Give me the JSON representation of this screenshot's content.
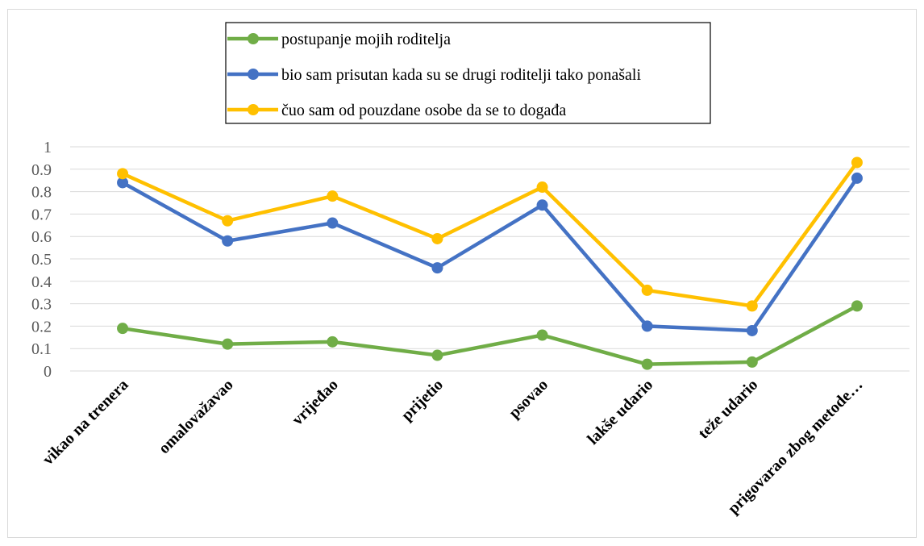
{
  "chart_data": {
    "type": "line",
    "title": "",
    "xlabel": "",
    "ylabel": "",
    "categories": [
      "vikao na trenera",
      "omalovažavao",
      "vrijeđao",
      "prijetio",
      "psovao",
      "lakše udario",
      "teže udario",
      "prigovarao zbog metode…"
    ],
    "ylim": [
      0,
      1
    ],
    "yticks": [
      "0",
      "0.1",
      "0.2",
      "0.3",
      "0.4",
      "0.5",
      "0.6",
      "0.7",
      "0.8",
      "0.9",
      "1"
    ],
    "grid": true,
    "legend_position": "top-center",
    "series": [
      {
        "name": "postupanje mojih roditelja",
        "color": "#70ad47",
        "values": [
          0.19,
          0.12,
          0.13,
          0.07,
          0.16,
          0.03,
          0.04,
          0.29
        ]
      },
      {
        "name": "bio sam prisutan kada su se drugi roditelji tako ponašali",
        "color": "#4472c4",
        "values": [
          0.84,
          0.58,
          0.66,
          0.46,
          0.74,
          0.2,
          0.18,
          0.86
        ]
      },
      {
        "name": "čuo sam od pouzdane osobe da se to događa",
        "color": "#ffc000",
        "values": [
          0.88,
          0.67,
          0.78,
          0.59,
          0.82,
          0.36,
          0.29,
          0.93
        ]
      }
    ]
  }
}
